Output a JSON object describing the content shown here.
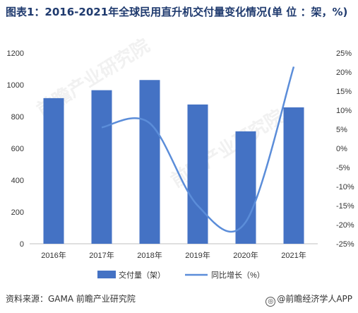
{
  "header": {
    "title": "图表1：2016-2021年全球民用直升机交付量变化情况(单 位 ：架，%)"
  },
  "footer": {
    "source": "资料来源：GAMA 前瞻产业研究院",
    "brand": "@前瞻经济学人APP"
  },
  "watermark": {
    "text": "前瞻产业研究院"
  },
  "chart_data": {
    "type": "bar",
    "categories": [
      "2016年",
      "2017年",
      "2018年",
      "2019年",
      "2020年",
      "2021年"
    ],
    "series": [
      {
        "name": "交付量（架）",
        "type": "bar",
        "axis": "left",
        "color": "#4472c4",
        "values": [
          916,
          966,
          1030,
          876,
          707,
          858
        ]
      },
      {
        "name": "同比增长（%）",
        "type": "line",
        "axis": "right",
        "color": "#5b8dd9",
        "values": [
          null,
          5.5,
          6.6,
          -15.0,
          -19.3,
          21.4
        ]
      }
    ],
    "left_axis": {
      "min": 0,
      "max": 1200,
      "ticks": [
        0,
        200,
        400,
        600,
        800,
        1000,
        1200
      ]
    },
    "right_axis": {
      "min": -25,
      "max": 25,
      "ticks": [
        "-25%",
        "-20%",
        "-15%",
        "-10%",
        "-5%",
        "0%",
        "5%",
        "10%",
        "15%",
        "20%",
        "25%"
      ]
    },
    "legend": {
      "position": "bottom"
    },
    "grid": false
  }
}
